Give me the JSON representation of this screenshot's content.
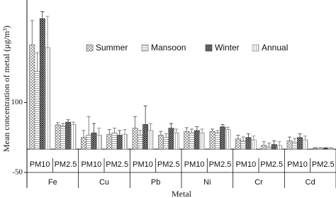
{
  "chart_data": {
    "type": "bar",
    "y_label": "Mean concentration of metal (μg/m³)",
    "x_label": "Metal",
    "groups": [
      "Fe",
      "Cu",
      "Pb",
      "Ni",
      "Cr",
      "Cd"
    ],
    "categories": [
      "PM10",
      "PM2.5",
      "PM10",
      "PM2.5",
      "PM10",
      "PM2.5",
      "PM10",
      "PM2.5",
      "PM10",
      "PM2.5",
      "PM10",
      "PM2.5"
    ],
    "series": [
      {
        "name": "Summer",
        "color": "#555555",
        "values": [
          224,
          52,
          25,
          32,
          45,
          30,
          38,
          38,
          22,
          8,
          18,
          2
        ],
        "errors": [
          52,
          5,
          15,
          10,
          25,
          8,
          8,
          5,
          8,
          8,
          8,
          1
        ]
      },
      {
        "name": "Mansoon",
        "color": "#666666",
        "values": [
          167,
          50,
          30,
          35,
          30,
          25,
          35,
          35,
          18,
          5,
          15,
          2
        ],
        "errors": [
          40,
          5,
          40,
          10,
          10,
          8,
          8,
          5,
          8,
          8,
          8,
          1
        ]
      },
      {
        "name": "Winter",
        "color": "#333333",
        "values": [
          280,
          58,
          35,
          30,
          53,
          45,
          40,
          48,
          25,
          10,
          25,
          2
        ],
        "errors": [
          15,
          5,
          20,
          10,
          40,
          10,
          8,
          5,
          8,
          8,
          8,
          1
        ]
      },
      {
        "name": "Annual",
        "color": "#777777",
        "values": [
          218,
          53,
          30,
          32,
          40,
          35,
          35,
          42,
          20,
          8,
          20,
          2
        ],
        "errors": [
          67,
          5,
          15,
          10,
          15,
          8,
          8,
          5,
          8,
          8,
          8,
          1
        ]
      }
    ],
    "ylim": [
      -50,
      320
    ],
    "yticks": [
      -50,
      100
    ]
  }
}
